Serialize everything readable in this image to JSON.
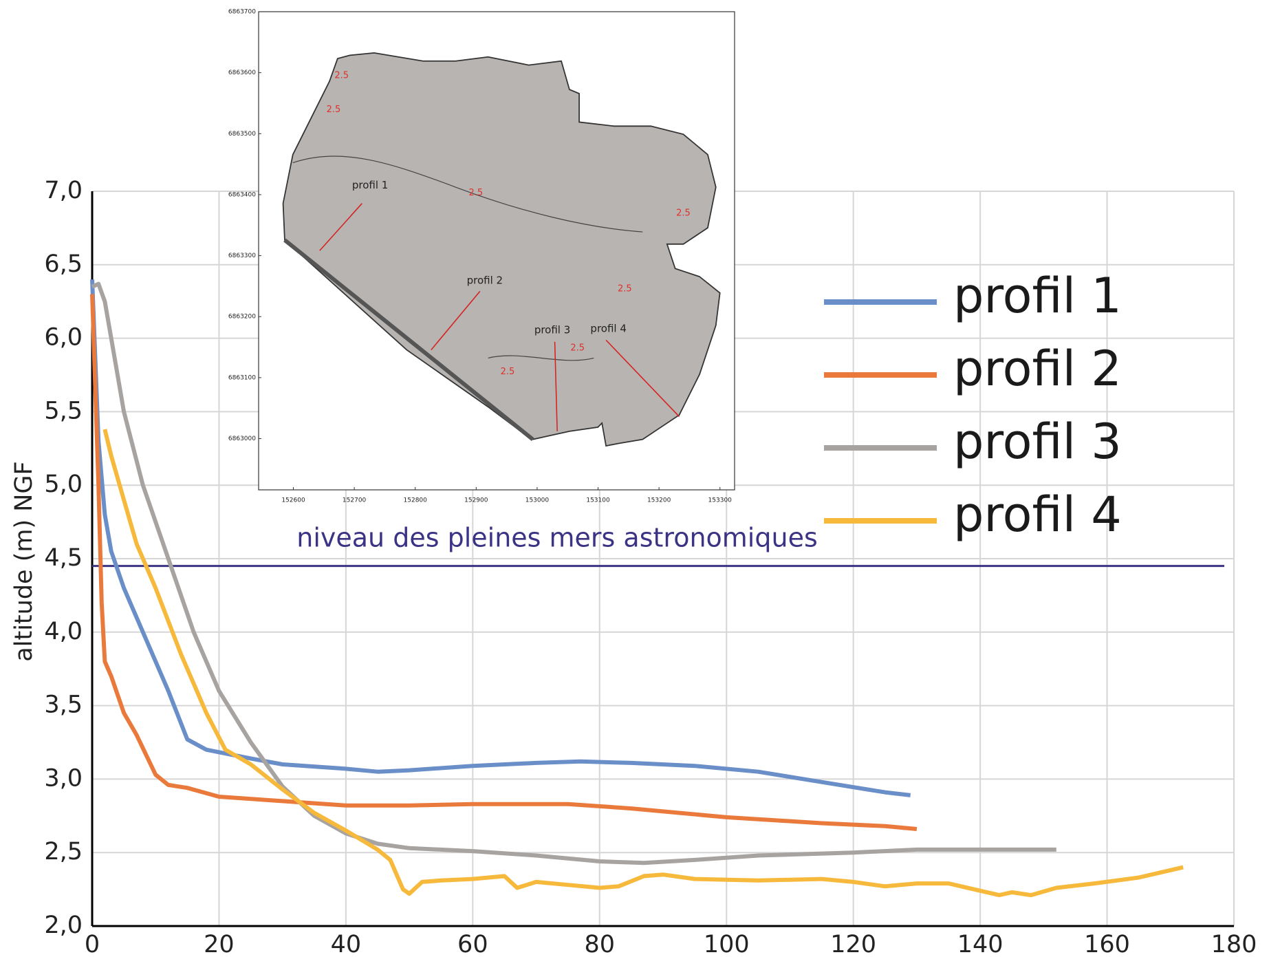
{
  "chart_data": {
    "type": "line",
    "ylabel": "altitude (m) NGF",
    "xlim": [
      0,
      180
    ],
    "xticks": [
      0,
      20,
      40,
      60,
      80,
      100,
      120,
      140,
      160,
      180
    ],
    "ylim": [
      2,
      7
    ],
    "yticks": [
      {
        "value": 2,
        "label": "2,0"
      },
      {
        "value": 2.5,
        "label": "2,5"
      },
      {
        "value": 3,
        "label": "3,0"
      },
      {
        "value": 3.5,
        "label": "3,5"
      },
      {
        "value": 4,
        "label": "4,0"
      },
      {
        "value": 4.5,
        "label": "4,5"
      },
      {
        "value": 5,
        "label": "5,0"
      },
      {
        "value": 5.5,
        "label": "5,5"
      },
      {
        "value": 6,
        "label": "6,0"
      },
      {
        "value": 6.5,
        "label": "6,5"
      },
      {
        "value": 7,
        "label": "7,0"
      }
    ],
    "grid": true,
    "legend": "right",
    "reference_line": {
      "value": 4.45,
      "label": "niveau des pleines mers astronomiques",
      "color": "#3b3384"
    },
    "series": [
      {
        "name": "profil 1",
        "color": "#6a8fc8",
        "x": [
          0,
          1,
          2,
          3,
          5,
          8,
          12,
          15,
          18,
          25,
          30,
          40,
          45,
          50,
          60,
          70,
          77,
          85,
          95,
          105,
          115,
          125,
          129
        ],
        "values": [
          6.4,
          5.3,
          4.8,
          4.55,
          4.3,
          4.0,
          3.6,
          3.27,
          3.2,
          3.14,
          3.1,
          3.07,
          3.05,
          3.06,
          3.09,
          3.11,
          3.12,
          3.11,
          3.09,
          3.05,
          2.98,
          2.91,
          2.89
        ]
      },
      {
        "name": "profil 2",
        "color": "#ea7a3c",
        "x": [
          0,
          1,
          1.5,
          2,
          3,
          5,
          7,
          10,
          12,
          15,
          20,
          30,
          40,
          50,
          60,
          75,
          85,
          100,
          115,
          125,
          130
        ],
        "values": [
          6.3,
          5.0,
          4.2,
          3.8,
          3.7,
          3.45,
          3.3,
          3.03,
          2.96,
          2.94,
          2.88,
          2.85,
          2.82,
          2.82,
          2.83,
          2.83,
          2.8,
          2.74,
          2.7,
          2.68,
          2.66
        ]
      },
      {
        "name": "profil 3",
        "color": "#a7a3a1",
        "x": [
          0,
          1,
          2,
          3,
          5,
          8,
          12,
          16,
          20,
          25,
          30,
          35,
          40,
          45,
          50,
          60,
          70,
          80,
          87,
          95,
          105,
          120,
          130,
          152
        ],
        "values": [
          6.35,
          6.37,
          6.25,
          6.0,
          5.5,
          5.0,
          4.5,
          4.0,
          3.6,
          3.25,
          2.95,
          2.75,
          2.63,
          2.56,
          2.53,
          2.51,
          2.48,
          2.44,
          2.43,
          2.45,
          2.48,
          2.5,
          2.52,
          2.52
        ]
      },
      {
        "name": "profil 4",
        "color": "#f6b93b",
        "x": [
          2,
          3,
          5,
          7,
          10,
          14,
          18,
          21,
          25,
          30,
          35,
          40,
          45,
          47,
          49,
          50,
          52,
          55,
          60,
          65,
          67,
          70,
          75,
          80,
          83,
          87,
          90,
          95,
          105,
          115,
          120,
          125,
          130,
          135,
          140,
          143,
          145,
          148,
          152,
          158,
          165,
          172
        ],
        "values": [
          5.38,
          5.2,
          4.9,
          4.6,
          4.3,
          3.85,
          3.45,
          3.2,
          3.1,
          2.93,
          2.77,
          2.65,
          2.52,
          2.45,
          2.25,
          2.22,
          2.3,
          2.31,
          2.32,
          2.34,
          2.26,
          2.3,
          2.28,
          2.26,
          2.27,
          2.34,
          2.35,
          2.32,
          2.31,
          2.32,
          2.3,
          2.27,
          2.29,
          2.29,
          2.24,
          2.21,
          2.23,
          2.21,
          2.26,
          2.29,
          2.33,
          2.4
        ]
      }
    ]
  },
  "inset": {
    "xlim": [
      152543,
      153324
    ],
    "ylim": [
      6862916,
      6863700
    ],
    "xticks": [
      152600,
      152700,
      152800,
      152900,
      153000,
      153100,
      153200,
      153300
    ],
    "yticks": [
      6863000,
      6863100,
      6863200,
      6863300,
      6863400,
      6863500,
      6863600,
      6863700
    ],
    "profile_labels": [
      "profil 1",
      "profil 2",
      "profil 3",
      "profil 4"
    ],
    "contour_labels": [
      "2.5",
      "2.5",
      "2.5",
      "2.5",
      "2.5",
      "2.5",
      "2.5"
    ]
  }
}
